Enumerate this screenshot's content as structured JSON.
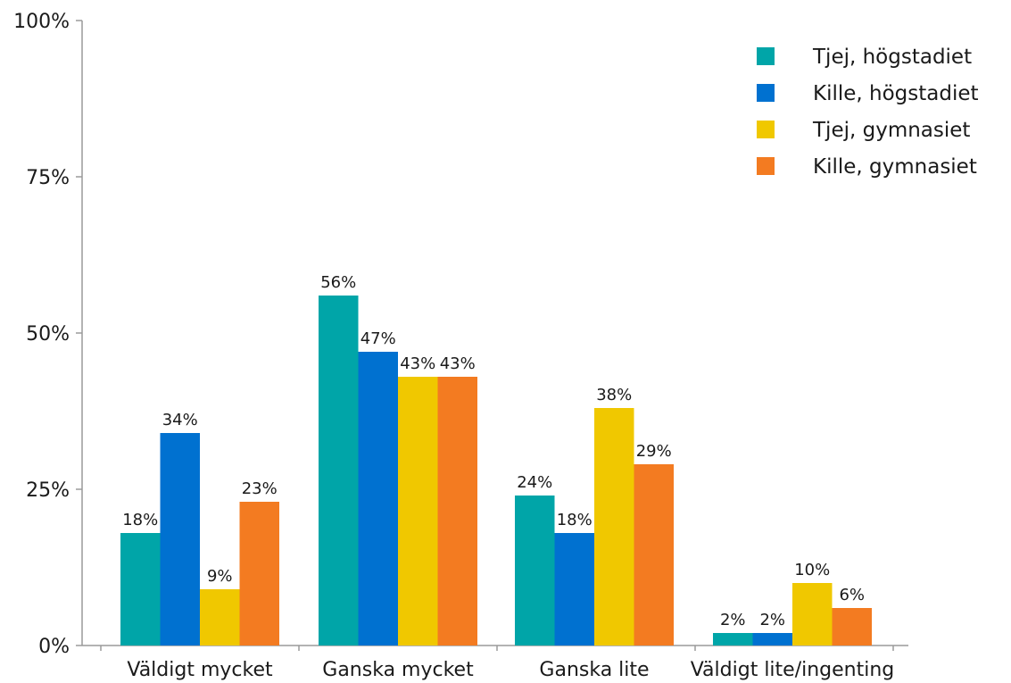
{
  "chart_data": {
    "type": "bar",
    "categories": [
      "Väldigt mycket",
      "Ganska mycket",
      "Ganska lite",
      "Väldigt lite/ingenting"
    ],
    "series": [
      {
        "name": "Tjej, högstadiet",
        "color": "#00a5a8",
        "values": [
          18,
          56,
          24,
          2
        ],
        "labels": [
          "18%",
          "56%",
          "24%",
          "2%"
        ]
      },
      {
        "name": "Kille, högstadiet",
        "color": "#0071d0",
        "values": [
          34,
          47,
          18,
          2
        ],
        "labels": [
          "34%",
          "47%",
          "18%",
          "2%"
        ]
      },
      {
        "name": "Tjej, gymnasiet",
        "color": "#f0c800",
        "values": [
          9,
          43,
          38,
          10
        ],
        "labels": [
          "9%",
          "43%",
          "38%",
          "10%"
        ]
      },
      {
        "name": "Kille, gymnasiet",
        "color": "#f37b21",
        "values": [
          23,
          43,
          29,
          6
        ],
        "labels": [
          "23%",
          "43%",
          "29%",
          "6%"
        ]
      }
    ],
    "ylim": [
      0,
      100
    ],
    "yticks": [
      0,
      25,
      50,
      75,
      100
    ],
    "ytick_labels": [
      "0%",
      "25%",
      "50%",
      "75%",
      "100%"
    ],
    "xlabel": "",
    "ylabel": "",
    "title": "",
    "grid": false,
    "legend_position": "top-right"
  }
}
